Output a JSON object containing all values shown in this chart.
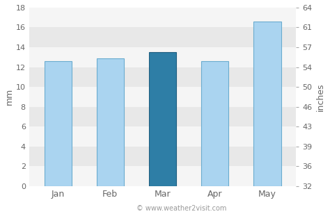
{
  "categories": [
    "Jan",
    "Feb",
    "Mar",
    "Apr",
    "May"
  ],
  "values_mm": [
    12.6,
    12.9,
    13.5,
    12.6,
    16.6
  ],
  "bar_colors": [
    "#aad4f0",
    "#aad4f0",
    "#2e7ea6",
    "#aad4f0",
    "#aad4f0"
  ],
  "bar_edgecolors": [
    "#6aaccf",
    "#6aaccf",
    "#1e5e80",
    "#6aaccf",
    "#6aaccf"
  ],
  "ylabel_left": "mm",
  "ylabel_right": "inches",
  "ylim_mm": [
    0,
    18
  ],
  "yticks_mm": [
    0,
    2,
    4,
    6,
    8,
    10,
    12,
    14,
    16,
    18
  ],
  "yticks_inches": [
    "32",
    "36",
    "39",
    "43",
    "46",
    "50",
    "54",
    "57",
    "61",
    "64"
  ],
  "background_color": "#ffffff",
  "plot_bg_color": "#ffffff",
  "band_color_dark": "#e8e8e8",
  "band_color_light": "#f5f5f5",
  "grid_color": "#cccccc",
  "watermark": "© www.weather2visit.com",
  "tick_label_color": "#666666",
  "axis_label_color": "#666666",
  "watermark_color": "#999999"
}
